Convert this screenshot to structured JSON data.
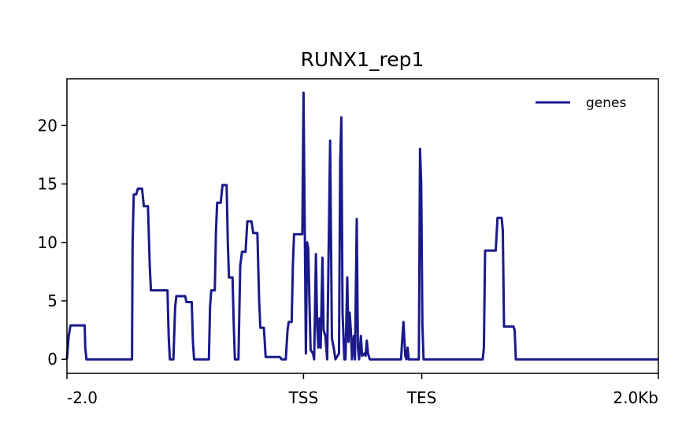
{
  "chart_data": {
    "type": "line",
    "title": "RUNX1_rep1",
    "xlabel": "",
    "ylabel": "",
    "ylim": [
      -1.2,
      24
    ],
    "yticks": [
      0,
      5,
      10,
      15,
      20
    ],
    "xticks": [
      {
        "pos": 0,
        "label": "-2.0"
      },
      {
        "pos": 0.4,
        "label": "TSS"
      },
      {
        "pos": 0.6,
        "label": "TES"
      },
      {
        "pos": 1,
        "label": "2.0Kb"
      }
    ],
    "legend": {
      "placement": "top-right"
    },
    "series": [
      {
        "name": "genes",
        "color": "#1a1a8a",
        "points": [
          [
            0.0,
            0.0
          ],
          [
            0.003,
            2.0
          ],
          [
            0.006,
            2.9
          ],
          [
            0.03,
            2.9
          ],
          [
            0.031,
            1.0
          ],
          [
            0.033,
            0.0
          ],
          [
            0.11,
            0.0
          ],
          [
            0.111,
            10.0
          ],
          [
            0.113,
            14.1
          ],
          [
            0.117,
            14.1
          ],
          [
            0.12,
            14.6
          ],
          [
            0.127,
            14.6
          ],
          [
            0.13,
            13.1
          ],
          [
            0.137,
            13.1
          ],
          [
            0.14,
            8.0
          ],
          [
            0.142,
            5.9
          ],
          [
            0.17,
            5.9
          ],
          [
            0.172,
            2.0
          ],
          [
            0.174,
            0.0
          ],
          [
            0.18,
            0.0
          ],
          [
            0.183,
            4.5
          ],
          [
            0.185,
            5.4
          ],
          [
            0.2,
            5.4
          ],
          [
            0.202,
            4.9
          ],
          [
            0.211,
            4.9
          ],
          [
            0.213,
            1.5
          ],
          [
            0.215,
            0.0
          ],
          [
            0.24,
            0.0
          ],
          [
            0.242,
            4.5
          ],
          [
            0.244,
            5.9
          ],
          [
            0.25,
            5.9
          ],
          [
            0.252,
            11.0
          ],
          [
            0.254,
            13.4
          ],
          [
            0.26,
            13.4
          ],
          [
            0.263,
            14.9
          ],
          [
            0.27,
            14.9
          ],
          [
            0.272,
            10.0
          ],
          [
            0.274,
            7.0
          ],
          [
            0.28,
            7.0
          ],
          [
            0.282,
            3.0
          ],
          [
            0.284,
            0.0
          ],
          [
            0.29,
            0.0
          ],
          [
            0.293,
            8.0
          ],
          [
            0.296,
            9.2
          ],
          [
            0.302,
            9.2
          ],
          [
            0.305,
            11.8
          ],
          [
            0.312,
            11.8
          ],
          [
            0.315,
            10.8
          ],
          [
            0.322,
            10.8
          ],
          [
            0.325,
            5.0
          ],
          [
            0.327,
            2.7
          ],
          [
            0.333,
            2.7
          ],
          [
            0.336,
            0.2
          ],
          [
            0.36,
            0.2
          ],
          [
            0.363,
            0.0
          ],
          [
            0.37,
            0.0
          ],
          [
            0.373,
            2.5
          ],
          [
            0.375,
            3.2
          ],
          [
            0.38,
            3.2
          ],
          [
            0.382,
            8.0
          ],
          [
            0.384,
            10.7
          ],
          [
            0.398,
            10.7
          ],
          [
            0.4,
            22.8
          ],
          [
            0.402,
            12.0
          ],
          [
            0.404,
            0.5
          ],
          [
            0.406,
            10.0
          ],
          [
            0.408,
            9.5
          ],
          [
            0.41,
            5.0
          ],
          [
            0.412,
            0.8
          ],
          [
            0.416,
            0.5
          ],
          [
            0.418,
            0.0
          ],
          [
            0.421,
            9.0
          ],
          [
            0.423,
            3.0
          ],
          [
            0.425,
            1.0
          ],
          [
            0.427,
            3.5
          ],
          [
            0.429,
            1.0
          ],
          [
            0.432,
            8.7
          ],
          [
            0.434,
            2.5
          ],
          [
            0.437,
            2.0
          ],
          [
            0.44,
            0.0
          ],
          [
            0.445,
            18.7
          ],
          [
            0.448,
            1.8
          ],
          [
            0.451,
            1.0
          ],
          [
            0.454,
            0.0
          ],
          [
            0.46,
            0.5
          ],
          [
            0.462,
            17.0
          ],
          [
            0.464,
            20.7
          ],
          [
            0.466,
            4.0
          ],
          [
            0.469,
            0.0
          ],
          [
            0.471,
            0.0
          ],
          [
            0.474,
            7.0
          ],
          [
            0.476,
            1.5
          ],
          [
            0.478,
            4.0
          ],
          [
            0.48,
            2.5
          ],
          [
            0.482,
            0.0
          ],
          [
            0.485,
            2.0
          ],
          [
            0.487,
            0.0
          ],
          [
            0.49,
            12.0
          ],
          [
            0.492,
            1.0
          ],
          [
            0.494,
            0.0
          ],
          [
            0.497,
            2.0
          ],
          [
            0.499,
            0.3
          ],
          [
            0.503,
            0.5
          ],
          [
            0.505,
            0.3
          ],
          [
            0.507,
            1.6
          ],
          [
            0.509,
            0.5
          ],
          [
            0.512,
            0.0
          ],
          [
            0.565,
            0.0
          ],
          [
            0.567,
            1.8
          ],
          [
            0.569,
            3.2
          ],
          [
            0.572,
            0.3
          ],
          [
            0.574,
            0.0
          ],
          [
            0.576,
            1.0
          ],
          [
            0.578,
            0.0
          ],
          [
            0.595,
            0.0
          ],
          [
            0.597,
            18.0
          ],
          [
            0.599,
            15.0
          ],
          [
            0.601,
            3.0
          ],
          [
            0.603,
            0.0
          ],
          [
            0.703,
            0.0
          ],
          [
            0.705,
            1.0
          ],
          [
            0.707,
            9.3
          ],
          [
            0.725,
            9.3
          ],
          [
            0.728,
            12.1
          ],
          [
            0.735,
            12.1
          ],
          [
            0.737,
            11.0
          ],
          [
            0.739,
            2.8
          ],
          [
            0.755,
            2.8
          ],
          [
            0.757,
            2.5
          ],
          [
            0.759,
            0.0
          ],
          [
            1.0,
            0.0
          ]
        ]
      }
    ]
  }
}
